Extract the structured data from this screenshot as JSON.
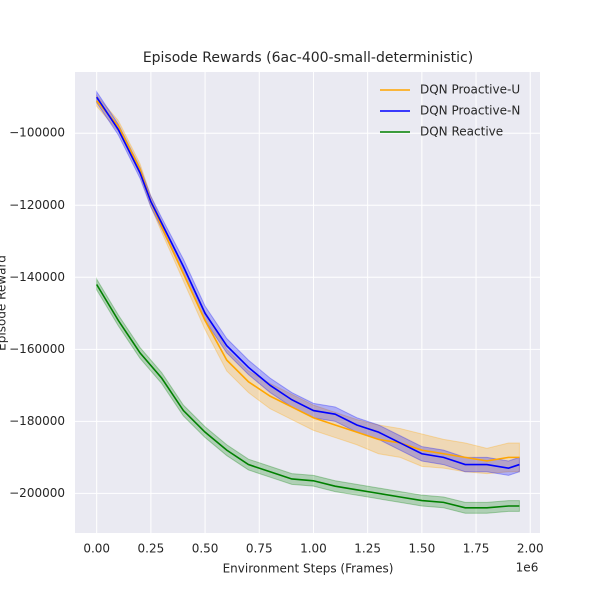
{
  "chart_data": {
    "type": "line",
    "title": "Episode Rewards (6ac-400-small-deterministic)",
    "x_label": "Environment Steps (Frames)",
    "x_offset_label": "1e6",
    "y_label": "Episode Reward",
    "x": [
      0,
      0.1,
      0.2,
      0.25,
      0.3,
      0.4,
      0.5,
      0.6,
      0.7,
      0.8,
      0.9,
      1.0,
      1.1,
      1.2,
      1.3,
      1.4,
      1.5,
      1.6,
      1.7,
      1.8,
      1.9,
      1.95
    ],
    "series": [
      {
        "name": "DQN Proactive-U",
        "color": "#ffa500",
        "values": [
          -91000,
          -98000,
          -110000,
          -119000,
          -126000,
          -139000,
          -152000,
          -163000,
          -169000,
          -173000,
          -176000,
          -179000,
          -181000,
          -183000,
          -185000,
          -186000,
          -188000,
          -189000,
          -190000,
          -191000,
          -190000,
          -190000
        ],
        "errors": [
          1500,
          1500,
          1500,
          1500,
          1500,
          2000,
          2500,
          3000,
          3000,
          3500,
          3500,
          3500,
          3500,
          3500,
          4000,
          4000,
          4500,
          4000,
          4000,
          3500,
          4000,
          4000
        ]
      },
      {
        "name": "DQN Proactive-N",
        "color": "#0000ff",
        "values": [
          -90000,
          -99000,
          -111000,
          -119000,
          -125000,
          -137000,
          -150000,
          -159000,
          -165000,
          -170000,
          -174000,
          -177000,
          -178000,
          -181000,
          -183000,
          -186000,
          -189000,
          -190000,
          -192000,
          -192000,
          -193000,
          -192000
        ],
        "errors": [
          1500,
          1500,
          1500,
          1500,
          1500,
          2000,
          2000,
          2000,
          2000,
          2000,
          2000,
          2000,
          2000,
          2000,
          2000,
          2000,
          2000,
          2000,
          2000,
          2000,
          2000,
          2000
        ]
      },
      {
        "name": "DQN Reactive",
        "color": "#008000",
        "values": [
          -142000,
          -152000,
          -161000,
          -164500,
          -168000,
          -177000,
          -183000,
          -188000,
          -192000,
          -194000,
          -196000,
          -196500,
          -198000,
          -199000,
          -200000,
          -201000,
          -202000,
          -202500,
          -204000,
          -204000,
          -203500,
          -203500
        ],
        "errors": [
          1500,
          1500,
          1500,
          1500,
          1500,
          1500,
          1500,
          1500,
          1500,
          1500,
          1500,
          1500,
          1500,
          1500,
          1500,
          1500,
          1500,
          1500,
          1500,
          1500,
          1500,
          1500
        ]
      }
    ],
    "xlim": [
      -0.1,
      2.045
    ],
    "ylim": [
      -211000,
      -83000
    ],
    "xticks": [
      {
        "value": 0,
        "label": "0.00"
      },
      {
        "value": 0.25,
        "label": "0.25"
      },
      {
        "value": 0.5,
        "label": "0.50"
      },
      {
        "value": 0.75,
        "label": "0.75"
      },
      {
        "value": 1.0,
        "label": "1.00"
      },
      {
        "value": 1.25,
        "label": "1.25"
      },
      {
        "value": 1.5,
        "label": "1.50"
      },
      {
        "value": 1.75,
        "label": "1.75"
      },
      {
        "value": 2.0,
        "label": "2.00"
      }
    ],
    "yticks": [
      {
        "value": -200000,
        "label": "−200000"
      },
      {
        "value": -180000,
        "label": "−180000"
      },
      {
        "value": -160000,
        "label": "−160000"
      },
      {
        "value": -140000,
        "label": "−140000"
      },
      {
        "value": -120000,
        "label": "−120000"
      },
      {
        "value": -100000,
        "label": "−100000"
      }
    ],
    "grid": true,
    "legend": "upper right"
  }
}
